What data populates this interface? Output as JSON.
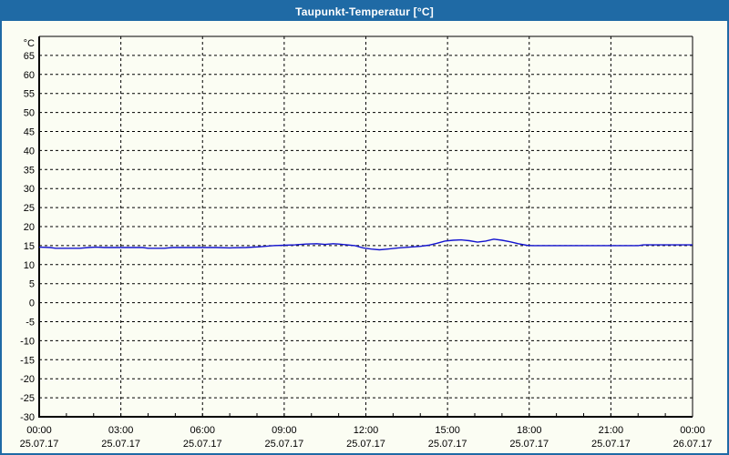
{
  "window": {
    "title": "Taupunkt-Temperatur [°C]"
  },
  "colors": {
    "titlebar": "#1f6aa5",
    "border": "#1f6aa5",
    "title_text": "#ffffff",
    "background": "#fbfdf3",
    "grid": "#000000",
    "axis": "#000000",
    "label": "#000000",
    "line": "#1313cf"
  },
  "chart_data": {
    "type": "line",
    "title": "Taupunkt-Temperatur [°C]",
    "unit_label": "°C",
    "grid": "dashed",
    "legend": "none",
    "ylim": [
      -30,
      70
    ],
    "yticks": [
      65,
      60,
      55,
      50,
      45,
      40,
      35,
      30,
      25,
      20,
      15,
      10,
      5,
      0,
      -5,
      -10,
      -15,
      -20,
      -25,
      -30
    ],
    "xlim_hours": [
      0,
      24
    ],
    "minor_xtick_every_hours": 1,
    "xticks": [
      {
        "hour": 0,
        "time": "00:00",
        "date": "25.07.17"
      },
      {
        "hour": 3,
        "time": "03:00",
        "date": "25.07.17"
      },
      {
        "hour": 6,
        "time": "06:00",
        "date": "25.07.17"
      },
      {
        "hour": 9,
        "time": "09:00",
        "date": "25.07.17"
      },
      {
        "hour": 12,
        "time": "12:00",
        "date": "25.07.17"
      },
      {
        "hour": 15,
        "time": "15:00",
        "date": "25.07.17"
      },
      {
        "hour": 18,
        "time": "18:00",
        "date": "25.07.17"
      },
      {
        "hour": 21,
        "time": "21:00",
        "date": "25.07.17"
      },
      {
        "hour": 24,
        "time": "00:00",
        "date": "26.07.17"
      }
    ],
    "series": [
      {
        "name": "Taupunkt-Temperatur",
        "color": "#1313cf",
        "points": [
          [
            0.0,
            14.6
          ],
          [
            0.4,
            14.5
          ],
          [
            0.6,
            14.3
          ],
          [
            1.5,
            14.3
          ],
          [
            1.8,
            14.5
          ],
          [
            2.1,
            14.6
          ],
          [
            2.4,
            14.5
          ],
          [
            3.8,
            14.5
          ],
          [
            4.0,
            14.3
          ],
          [
            4.6,
            14.3
          ],
          [
            4.9,
            14.5
          ],
          [
            6.5,
            14.5
          ],
          [
            7.0,
            14.4
          ],
          [
            7.6,
            14.5
          ],
          [
            8.1,
            14.7
          ],
          [
            8.6,
            15.0
          ],
          [
            9.0,
            15.1
          ],
          [
            9.4,
            15.2
          ],
          [
            9.8,
            15.4
          ],
          [
            10.2,
            15.5
          ],
          [
            10.5,
            15.3
          ],
          [
            10.8,
            15.5
          ],
          [
            11.0,
            15.4
          ],
          [
            11.3,
            15.2
          ],
          [
            11.6,
            15.0
          ],
          [
            11.9,
            14.4
          ],
          [
            12.2,
            14.1
          ],
          [
            12.5,
            13.9
          ],
          [
            12.8,
            14.1
          ],
          [
            13.2,
            14.4
          ],
          [
            13.6,
            14.6
          ],
          [
            14.0,
            14.8
          ],
          [
            14.3,
            15.1
          ],
          [
            14.6,
            15.6
          ],
          [
            14.9,
            16.2
          ],
          [
            15.2,
            16.4
          ],
          [
            15.5,
            16.5
          ],
          [
            15.8,
            16.3
          ],
          [
            16.1,
            15.9
          ],
          [
            16.4,
            16.2
          ],
          [
            16.7,
            16.7
          ],
          [
            17.0,
            16.4
          ],
          [
            17.3,
            16.0
          ],
          [
            17.6,
            15.5
          ],
          [
            17.9,
            15.1
          ],
          [
            18.1,
            15.0
          ],
          [
            19.0,
            15.0
          ],
          [
            20.0,
            15.0
          ],
          [
            21.0,
            15.0
          ],
          [
            22.0,
            15.0
          ],
          [
            22.2,
            15.2
          ],
          [
            23.0,
            15.2
          ],
          [
            23.6,
            15.2
          ],
          [
            24.0,
            15.2
          ]
        ]
      }
    ]
  }
}
